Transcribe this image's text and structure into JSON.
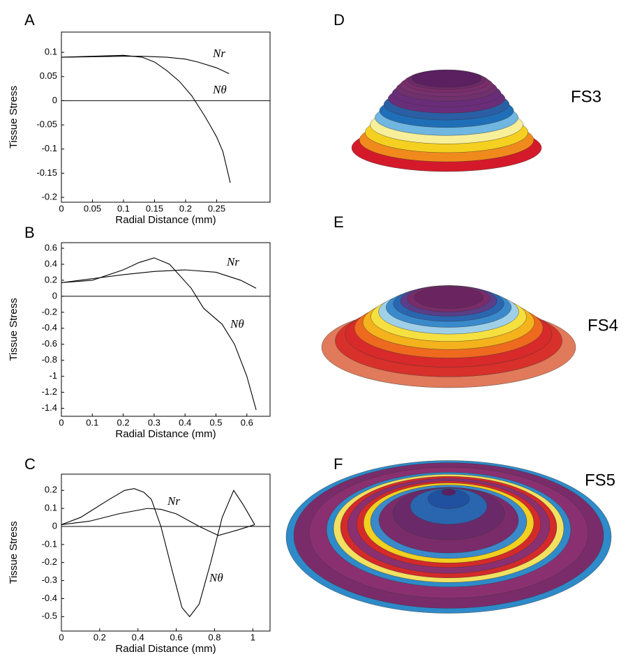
{
  "panel_labels": [
    "A",
    "B",
    "C",
    "D",
    "E",
    "F"
  ],
  "shape_labels": [
    "FS3",
    "FS4",
    "FS5"
  ],
  "chart_data": [
    {
      "type": "line",
      "ylabel": "Tissue Stress",
      "xlabel": "Radial Distance (mm)",
      "xlim": [
        0,
        0.336
      ],
      "ylim": [
        -0.21,
        0.142
      ],
      "xticks": [
        0,
        0.05,
        0.1,
        0.15,
        0.2,
        0.25
      ],
      "yticks": [
        0.1,
        0.05,
        0,
        -0.05,
        -0.1,
        -0.15,
        -0.2
      ],
      "series": [
        {
          "name": "Nr",
          "color": "#000000",
          "x": [
            0,
            0.05,
            0.1,
            0.13,
            0.17,
            0.2,
            0.22,
            0.25,
            0.27
          ],
          "values": [
            0.09,
            0.091,
            0.092,
            0.092,
            0.09,
            0.086,
            0.08,
            0.068,
            0.056
          ]
        },
        {
          "name": "Nθ",
          "color": "#000000",
          "x": [
            0,
            0.05,
            0.1,
            0.13,
            0.15,
            0.17,
            0.19,
            0.21,
            0.23,
            0.24,
            0.25,
            0.26,
            0.272
          ],
          "values": [
            0.09,
            0.092,
            0.094,
            0.09,
            0.08,
            0.062,
            0.04,
            0.01,
            -0.03,
            -0.052,
            -0.075,
            -0.105,
            -0.17
          ]
        }
      ]
    },
    {
      "type": "line",
      "ylabel": "Tissue Stress",
      "xlabel": "Radial Distance (mm)",
      "xlim": [
        0,
        0.675
      ],
      "ylim": [
        -1.5,
        0.67
      ],
      "xticks": [
        0,
        0.1,
        0.2,
        0.3,
        0.4,
        0.5,
        0.6
      ],
      "yticks": [
        0.6,
        0.4,
        0.2,
        0,
        -0.2,
        -0.4,
        -0.6,
        -0.8,
        -1,
        -1.2,
        -1.4
      ],
      "series": [
        {
          "name": "Nr",
          "color": "#000000",
          "x": [
            0,
            0.1,
            0.2,
            0.3,
            0.4,
            0.5,
            0.58,
            0.63
          ],
          "values": [
            0.17,
            0.22,
            0.27,
            0.31,
            0.33,
            0.3,
            0.2,
            0.1
          ]
        },
        {
          "name": "Nθ",
          "color": "#000000",
          "x": [
            0,
            0.1,
            0.2,
            0.25,
            0.3,
            0.35,
            0.42,
            0.46,
            0.52,
            0.56,
            0.6,
            0.63
          ],
          "values": [
            0.17,
            0.2,
            0.33,
            0.42,
            0.48,
            0.4,
            0.1,
            -0.15,
            -0.35,
            -0.6,
            -1.0,
            -1.42
          ]
        }
      ]
    },
    {
      "type": "line",
      "ylabel": "Tissue Stress",
      "xlabel": "Radial Distance (mm)",
      "xlim": [
        0,
        1.09
      ],
      "ylim": [
        -0.58,
        0.29
      ],
      "xticks": [
        0,
        0.2,
        0.4,
        0.6,
        0.8,
        1
      ],
      "yticks": [
        0.2,
        0.1,
        0,
        -0.1,
        -0.2,
        -0.3,
        -0.4,
        -0.5
      ],
      "series": [
        {
          "name": "Nr",
          "color": "#000000",
          "x": [
            0,
            0.15,
            0.3,
            0.45,
            0.52,
            0.6,
            0.72,
            0.82,
            0.92,
            1.01
          ],
          "values": [
            0.01,
            0.03,
            0.07,
            0.1,
            0.095,
            0.07,
            0,
            -0.05,
            -0.02,
            0.01
          ]
        },
        {
          "name": "Nθ",
          "color": "#000000",
          "x": [
            0,
            0.1,
            0.25,
            0.33,
            0.38,
            0.43,
            0.47,
            0.52,
            0.58,
            0.63,
            0.67,
            0.72,
            0.78,
            0.84,
            0.9,
            0.95,
            1.01
          ],
          "values": [
            0.01,
            0.05,
            0.15,
            0.2,
            0.21,
            0.19,
            0.15,
            0,
            -0.25,
            -0.45,
            -0.5,
            -0.43,
            -0.2,
            0.05,
            0.2,
            0.12,
            0.01
          ]
        }
      ]
    }
  ]
}
